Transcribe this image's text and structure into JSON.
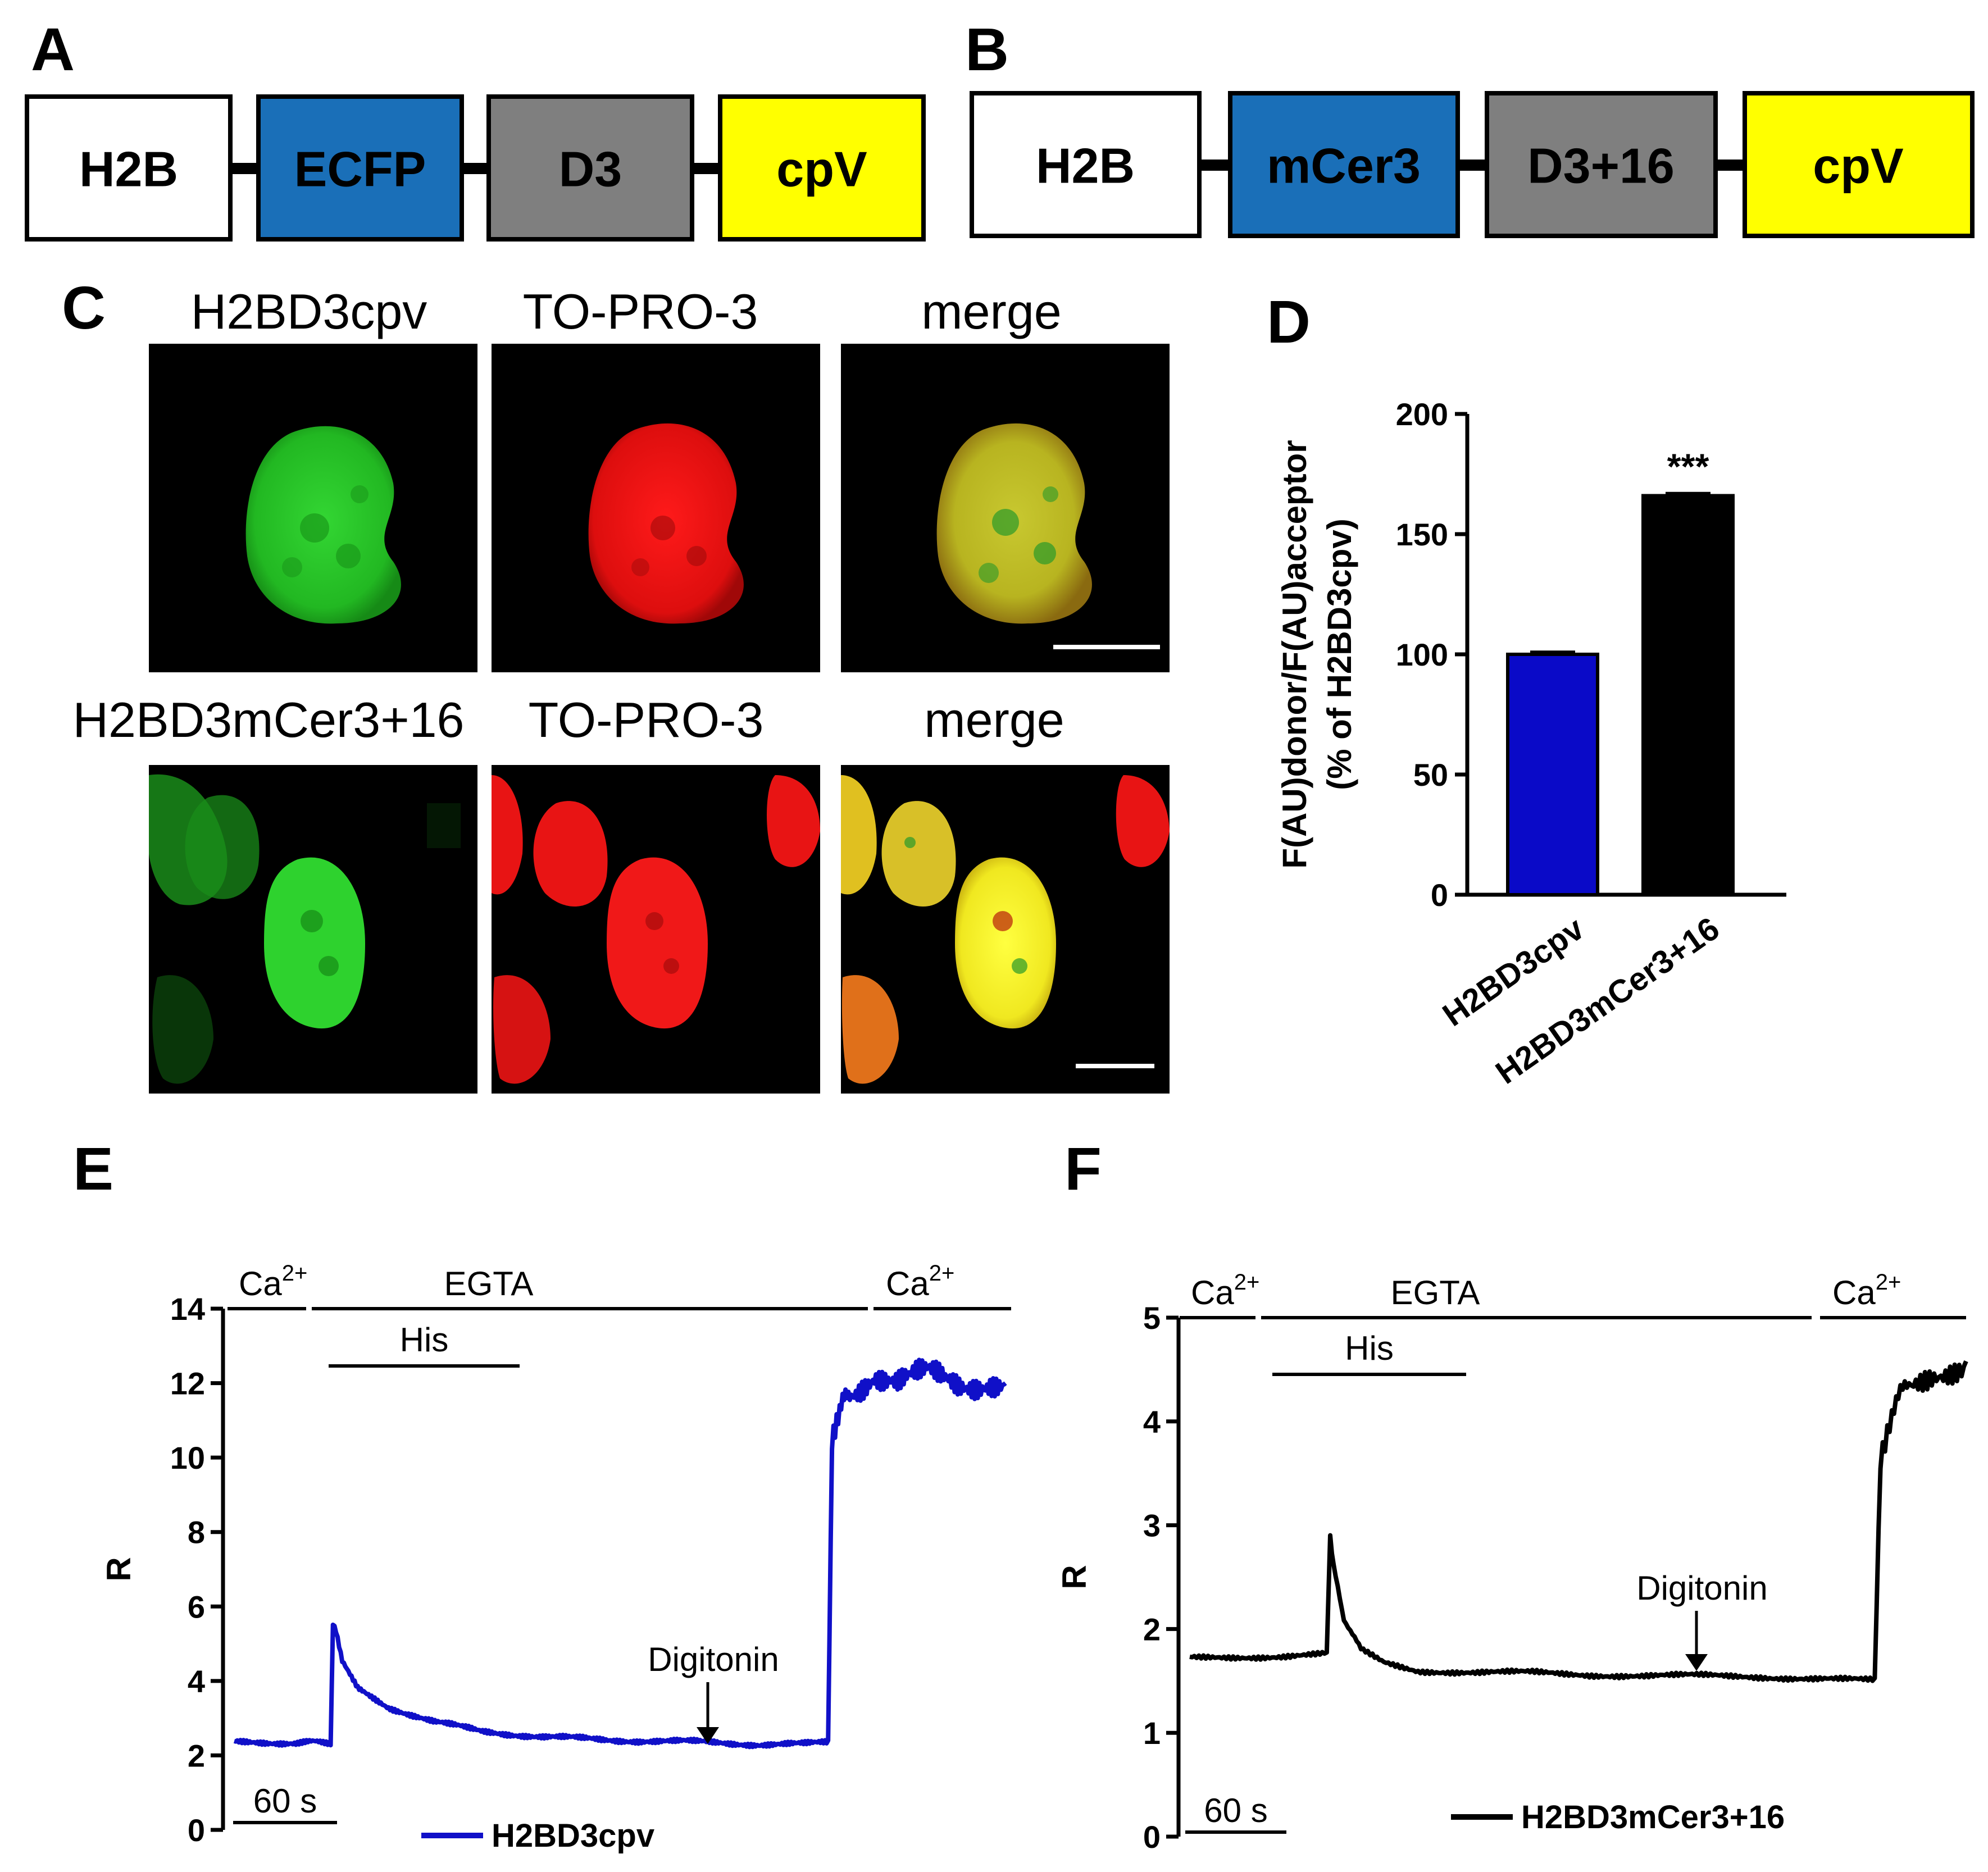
{
  "colors": {
    "ecfp": "#1a6fb8",
    "linker_gray": "#7f7f7f",
    "cpv": "#ffff00",
    "h2bd3cpv_series": "#1010c8",
    "h2bd3mcer3_series": "#000000",
    "bar_blue": "#0a0ac8",
    "bar_black": "#000000",
    "nucleus_green": "#22c822",
    "nucleus_red": "#e81010",
    "nucleus_yellow": "#e8e020"
  },
  "panels": {
    "a": {
      "letter": "A",
      "segments": [
        "H2B",
        "ECFP",
        "D3",
        "cpV"
      ]
    },
    "b": {
      "letter": "B",
      "segments": [
        "H2B",
        "mCer3",
        "D3+16",
        "cpV"
      ]
    },
    "c": {
      "letter": "C",
      "row1_titles": [
        "H2BD3cpv",
        "TO-PRO-3",
        "merge"
      ],
      "row2_titles": [
        "H2BD3mCer3+16",
        "TO-PRO-3",
        "merge"
      ]
    },
    "e": {
      "letter": "E",
      "legend": "H2BD3cpv",
      "scalebar": "60 s",
      "ylabel": "R",
      "labels": {
        "ca_left": "Ca",
        "ca_sup": "2+",
        "egta": "EGTA",
        "his": "His",
        "digitonin": "Digitonin",
        "ca_right": "Ca",
        "ca_right_sup": "2+"
      }
    },
    "f": {
      "letter": "F",
      "legend": "H2BD3mCer3+16",
      "scalebar": "60 s",
      "ylabel": "R",
      "labels": {
        "ca_left": "Ca",
        "ca_sup": "2+",
        "egta": "EGTA",
        "his": "His",
        "digitonin": "Digitonin",
        "ca_right": "Ca",
        "ca_right_sup": "2+"
      }
    }
  },
  "chart_data": [
    {
      "panel": "D",
      "type": "bar",
      "categories": [
        "H2BD3cpv",
        "H2BD3mCer3+16"
      ],
      "values": [
        100,
        166
      ],
      "errors": [
        1,
        1
      ],
      "significance": [
        "",
        "***"
      ],
      "ylabel": "F(AU)donor/F(AU)acceptor",
      "ylabel2": "(% of H2BD3cpv)",
      "ylim": [
        0,
        200
      ],
      "yticks": [
        0,
        50,
        100,
        150,
        200
      ],
      "grid": false
    },
    {
      "panel": "E",
      "type": "line",
      "series_name": "H2BD3cpv",
      "ylabel": "R",
      "ylim": [
        0,
        14
      ],
      "yticks": [
        0,
        2,
        4,
        6,
        8,
        10,
        12,
        14
      ],
      "x_units": "s",
      "x": [
        0,
        40,
        80,
        125,
        128,
        132,
        140,
        160,
        200,
        260,
        320,
        400,
        480,
        560,
        620,
        680,
        740,
        770,
        775,
        785,
        800,
        830,
        860,
        900,
        940,
        980,
        1000
      ],
      "y": [
        2.35,
        2.35,
        2.35,
        2.35,
        5.5,
        5.3,
        4.5,
        3.8,
        3.3,
        2.9,
        2.65,
        2.5,
        2.42,
        2.38,
        2.35,
        2.3,
        2.3,
        2.35,
        10.5,
        11.2,
        11.8,
        12.3,
        12.0,
        12.2,
        12.0,
        12.1,
        12.0
      ],
      "grid": false
    },
    {
      "panel": "F",
      "type": "line",
      "series_name": "H2BD3mCer3+16",
      "ylabel": "R",
      "ylim": [
        0,
        5
      ],
      "yticks": [
        0,
        1,
        2,
        3,
        4,
        5
      ],
      "x_units": "s",
      "x": [
        0,
        40,
        80,
        120,
        123,
        126,
        135,
        150,
        170,
        200,
        250,
        300,
        350,
        400,
        450,
        500,
        560,
        600,
        605,
        615,
        630,
        650,
        680
      ],
      "y": [
        1.72,
        1.73,
        1.74,
        1.76,
        2.9,
        2.6,
        2.1,
        1.8,
        1.68,
        1.6,
        1.58,
        1.58,
        1.56,
        1.55,
        1.55,
        1.54,
        1.52,
        1.5,
        3.7,
        4.1,
        4.35,
        4.48,
        4.58
      ],
      "grid": false
    }
  ]
}
